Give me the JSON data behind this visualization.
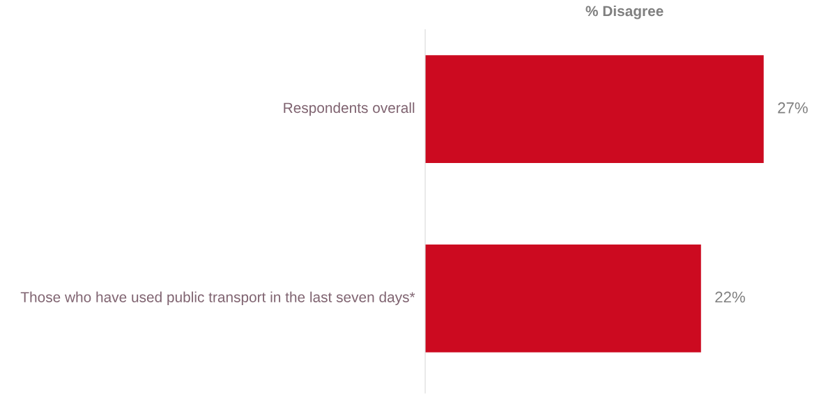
{
  "chart_data": {
    "type": "bar",
    "orientation": "horizontal",
    "title": "% Disagree",
    "categories": [
      "Respondents overall",
      "Those who have used public transport in the last seven days*"
    ],
    "values": [
      27,
      22
    ],
    "color": "#cc0a20",
    "data_labels": true,
    "value_labels": [
      "27%",
      "22%"
    ]
  }
}
